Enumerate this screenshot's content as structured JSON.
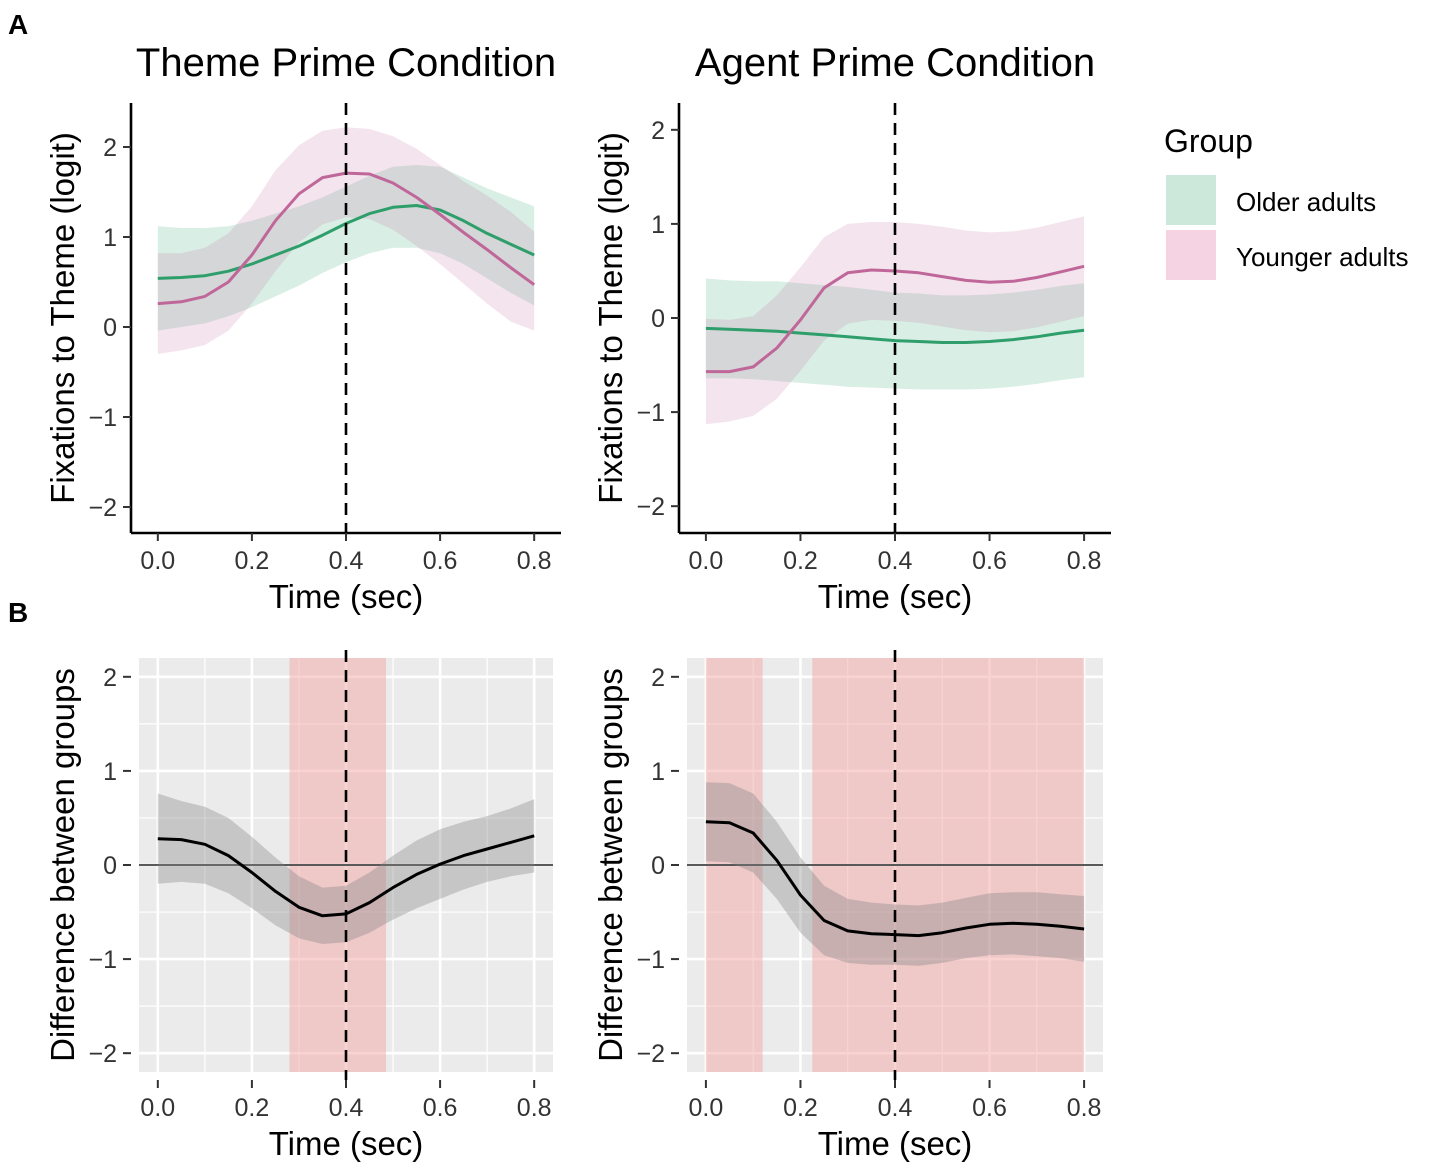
{
  "figure": {
    "panel_labels": [
      "A",
      "B"
    ],
    "legend": {
      "title": "Group",
      "items": [
        {
          "label": "Older adults",
          "line_color": "#2e9e6b",
          "fill_color": "#cce8db"
        },
        {
          "label": "Younger adults",
          "line_color": "#c0679a",
          "fill_color": "#f6d3e3"
        }
      ]
    },
    "colors": {
      "difference_line": "#000000",
      "difference_ribbon": "#808080",
      "significant_region": "#f4a6a6",
      "panel_background": "#ebebeb",
      "grid": "#ffffff",
      "zero_line": "#595959"
    }
  },
  "chart_data": [
    {
      "id": "theme_fixations",
      "type": "line",
      "title": "Theme Prime Condition",
      "xlabel": "Time (sec)",
      "ylabel": "Fixations to Theme (logit)",
      "xlim": [
        -0.04,
        0.84
      ],
      "ylim": [
        -2.2,
        2.4
      ],
      "xticks": [
        0.0,
        0.2,
        0.4,
        0.6,
        0.8
      ],
      "xtick_labels": [
        "0.0",
        "0.2",
        "0.4",
        "0.6",
        "0.8"
      ],
      "yticks": [
        -2,
        -1,
        0,
        1,
        2
      ],
      "ytick_labels": [
        "−2",
        "−1",
        "0",
        "1",
        "2"
      ],
      "vline": 0.4,
      "grid": false,
      "x": [
        0.0,
        0.05,
        0.1,
        0.15,
        0.2,
        0.25,
        0.3,
        0.35,
        0.4,
        0.45,
        0.5,
        0.55,
        0.6,
        0.65,
        0.7,
        0.75,
        0.8
      ],
      "series": [
        {
          "name": "Older adults",
          "values": [
            0.54,
            0.55,
            0.57,
            0.62,
            0.7,
            0.8,
            0.9,
            1.02,
            1.15,
            1.26,
            1.33,
            1.35,
            1.3,
            1.18,
            1.04,
            0.92,
            0.8
          ],
          "lower": [
            -0.04,
            0.0,
            0.04,
            0.12,
            0.22,
            0.34,
            0.46,
            0.6,
            0.72,
            0.82,
            0.88,
            0.88,
            0.82,
            0.7,
            0.54,
            0.38,
            0.24
          ],
          "upper": [
            1.12,
            1.1,
            1.1,
            1.12,
            1.18,
            1.26,
            1.34,
            1.44,
            1.56,
            1.68,
            1.78,
            1.8,
            1.78,
            1.66,
            1.54,
            1.44,
            1.34
          ]
        },
        {
          "name": "Younger adults",
          "values": [
            0.26,
            0.28,
            0.34,
            0.5,
            0.8,
            1.18,
            1.48,
            1.66,
            1.71,
            1.7,
            1.6,
            1.44,
            1.25,
            1.05,
            0.86,
            0.66,
            0.47
          ],
          "lower": [
            -0.3,
            -0.26,
            -0.2,
            -0.04,
            0.26,
            0.62,
            0.94,
            1.14,
            1.22,
            1.2,
            1.08,
            0.9,
            0.7,
            0.48,
            0.26,
            0.06,
            -0.04
          ],
          "upper": [
            0.82,
            0.82,
            0.88,
            1.04,
            1.34,
            1.74,
            2.02,
            2.18,
            2.22,
            2.2,
            2.12,
            1.98,
            1.8,
            1.62,
            1.46,
            1.28,
            1.06
          ]
        }
      ]
    },
    {
      "id": "agent_fixations",
      "type": "line",
      "title": "Agent Prime Condition",
      "xlabel": "Time (sec)",
      "ylabel": "Fixations to Theme (logit)",
      "xlim": [
        -0.04,
        0.84
      ],
      "ylim": [
        -2.2,
        2.2
      ],
      "xticks": [
        0.0,
        0.2,
        0.4,
        0.6,
        0.8
      ],
      "xtick_labels": [
        "0.0",
        "0.2",
        "0.4",
        "0.6",
        "0.8"
      ],
      "yticks": [
        -2,
        -1,
        0,
        1,
        2
      ],
      "ytick_labels": [
        "−2",
        "−1",
        "0",
        "1",
        "2"
      ],
      "vline": 0.4,
      "grid": false,
      "x": [
        0.0,
        0.05,
        0.1,
        0.15,
        0.2,
        0.25,
        0.3,
        0.35,
        0.4,
        0.45,
        0.5,
        0.55,
        0.6,
        0.65,
        0.7,
        0.75,
        0.8
      ],
      "series": [
        {
          "name": "Older adults",
          "values": [
            -0.11,
            -0.12,
            -0.13,
            -0.14,
            -0.16,
            -0.18,
            -0.2,
            -0.22,
            -0.24,
            -0.25,
            -0.26,
            -0.26,
            -0.25,
            -0.23,
            -0.2,
            -0.16,
            -0.13
          ],
          "lower": [
            -0.64,
            -0.64,
            -0.65,
            -0.67,
            -0.69,
            -0.71,
            -0.73,
            -0.74,
            -0.75,
            -0.76,
            -0.76,
            -0.76,
            -0.75,
            -0.73,
            -0.7,
            -0.66,
            -0.63
          ],
          "upper": [
            0.42,
            0.4,
            0.39,
            0.39,
            0.37,
            0.35,
            0.33,
            0.3,
            0.27,
            0.26,
            0.24,
            0.24,
            0.25,
            0.27,
            0.3,
            0.34,
            0.37
          ]
        },
        {
          "name": "Younger adults",
          "values": [
            -0.57,
            -0.57,
            -0.52,
            -0.32,
            -0.02,
            0.32,
            0.48,
            0.51,
            0.5,
            0.48,
            0.44,
            0.4,
            0.38,
            0.39,
            0.43,
            0.49,
            0.55
          ],
          "lower": [
            -1.13,
            -1.1,
            -1.04,
            -0.86,
            -0.56,
            -0.24,
            -0.06,
            -0.02,
            -0.03,
            -0.05,
            -0.09,
            -0.13,
            -0.15,
            -0.14,
            -0.1,
            -0.04,
            0.02
          ],
          "upper": [
            -0.01,
            -0.02,
            0.02,
            0.24,
            0.54,
            0.86,
            1.0,
            1.02,
            1.02,
            1.0,
            0.97,
            0.93,
            0.91,
            0.92,
            0.96,
            1.02,
            1.08
          ]
        }
      ]
    },
    {
      "id": "theme_difference",
      "type": "line",
      "xlabel": "Time (sec)",
      "ylabel": "Difference between groups",
      "xlim": [
        -0.04,
        0.84
      ],
      "ylim": [
        -2.2,
        2.2
      ],
      "xticks": [
        0.0,
        0.2,
        0.4,
        0.6,
        0.8
      ],
      "xtick_labels": [
        "0.0",
        "0.2",
        "0.4",
        "0.6",
        "0.8"
      ],
      "yticks": [
        -2,
        -1,
        0,
        1,
        2
      ],
      "ytick_labels": [
        "−2",
        "−1",
        "0",
        "1",
        "2"
      ],
      "vline": 0.4,
      "hline": 0,
      "grid": true,
      "significant_regions": [
        [
          0.28,
          0.485
        ]
      ],
      "x": [
        0.0,
        0.05,
        0.1,
        0.15,
        0.2,
        0.25,
        0.3,
        0.35,
        0.4,
        0.45,
        0.5,
        0.55,
        0.6,
        0.65,
        0.7,
        0.75,
        0.8
      ],
      "series": [
        {
          "name": "Difference",
          "values": [
            0.28,
            0.27,
            0.22,
            0.1,
            -0.08,
            -0.28,
            -0.45,
            -0.54,
            -0.52,
            -0.4,
            -0.24,
            -0.1,
            0.01,
            0.1,
            0.17,
            0.24,
            0.31
          ],
          "lower": [
            -0.2,
            -0.18,
            -0.2,
            -0.3,
            -0.46,
            -0.64,
            -0.78,
            -0.84,
            -0.82,
            -0.72,
            -0.58,
            -0.46,
            -0.36,
            -0.26,
            -0.18,
            -0.12,
            -0.08
          ],
          "upper": [
            0.76,
            0.68,
            0.62,
            0.5,
            0.3,
            0.08,
            -0.12,
            -0.24,
            -0.22,
            -0.08,
            0.1,
            0.26,
            0.38,
            0.46,
            0.52,
            0.6,
            0.7
          ]
        }
      ]
    },
    {
      "id": "agent_difference",
      "type": "line",
      "xlabel": "Time (sec)",
      "ylabel": "Difference between groups",
      "xlim": [
        -0.04,
        0.84
      ],
      "ylim": [
        -2.2,
        2.2
      ],
      "xticks": [
        0.0,
        0.2,
        0.4,
        0.6,
        0.8
      ],
      "xtick_labels": [
        "0.0",
        "0.2",
        "0.4",
        "0.6",
        "0.8"
      ],
      "yticks": [
        -2,
        -1,
        0,
        1,
        2
      ],
      "ytick_labels": [
        "−2",
        "−1",
        "0",
        "1",
        "2"
      ],
      "vline": 0.4,
      "hline": 0,
      "grid": true,
      "significant_regions": [
        [
          0.0,
          0.12
        ],
        [
          0.225,
          0.8
        ]
      ],
      "x": [
        0.0,
        0.05,
        0.1,
        0.15,
        0.2,
        0.25,
        0.3,
        0.35,
        0.4,
        0.45,
        0.5,
        0.55,
        0.6,
        0.65,
        0.7,
        0.75,
        0.8
      ],
      "series": [
        {
          "name": "Difference",
          "values": [
            0.46,
            0.45,
            0.34,
            0.05,
            -0.32,
            -0.59,
            -0.7,
            -0.73,
            -0.74,
            -0.75,
            -0.72,
            -0.67,
            -0.63,
            -0.62,
            -0.63,
            -0.65,
            -0.68
          ],
          "lower": [
            0.04,
            0.03,
            -0.08,
            -0.36,
            -0.72,
            -0.96,
            -1.04,
            -1.06,
            -1.06,
            -1.07,
            -1.04,
            -0.99,
            -0.96,
            -0.95,
            -0.97,
            -0.99,
            -1.03
          ],
          "upper": [
            0.88,
            0.87,
            0.76,
            0.46,
            0.08,
            -0.22,
            -0.36,
            -0.4,
            -0.42,
            -0.43,
            -0.4,
            -0.35,
            -0.3,
            -0.29,
            -0.29,
            -0.31,
            -0.33
          ]
        }
      ]
    }
  ]
}
